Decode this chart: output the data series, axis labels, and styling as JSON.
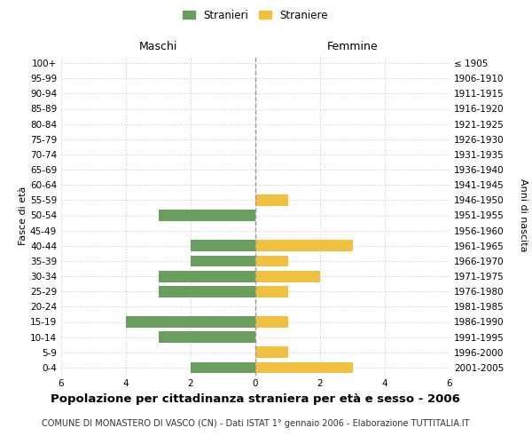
{
  "age_groups": [
    "0-4",
    "5-9",
    "10-14",
    "15-19",
    "20-24",
    "25-29",
    "30-34",
    "35-39",
    "40-44",
    "45-49",
    "50-54",
    "55-59",
    "60-64",
    "65-69",
    "70-74",
    "75-79",
    "80-84",
    "85-89",
    "90-94",
    "95-99",
    "100+"
  ],
  "birth_years": [
    "2001-2005",
    "1996-2000",
    "1991-1995",
    "1986-1990",
    "1981-1985",
    "1976-1980",
    "1971-1975",
    "1966-1970",
    "1961-1965",
    "1956-1960",
    "1951-1955",
    "1946-1950",
    "1941-1945",
    "1936-1940",
    "1931-1935",
    "1926-1930",
    "1921-1925",
    "1916-1920",
    "1911-1915",
    "1906-1910",
    "≤ 1905"
  ],
  "males": [
    2,
    0,
    3,
    4,
    0,
    3,
    3,
    2,
    2,
    0,
    3,
    0,
    0,
    0,
    0,
    0,
    0,
    0,
    0,
    0,
    0
  ],
  "females": [
    3,
    1,
    0,
    1,
    0,
    1,
    2,
    1,
    3,
    0,
    0,
    1,
    0,
    0,
    0,
    0,
    0,
    0,
    0,
    0,
    0
  ],
  "male_color": "#6a9e5f",
  "female_color": "#f0c040",
  "bar_height": 0.75,
  "xlim": 6,
  "title": "Popolazione per cittadinanza straniera per età e sesso - 2006",
  "subtitle": "COMUNE DI MONASTERO DI VASCO (CN) - Dati ISTAT 1° gennaio 2006 - Elaborazione TUTTITALIA.IT",
  "xlabel_left": "Maschi",
  "xlabel_right": "Femmine",
  "ylabel_left": "Fasce di età",
  "ylabel_right": "Anni di nascita",
  "legend_male": "Stranieri",
  "legend_female": "Straniere",
  "bg_color": "#ffffff",
  "grid_color": "#cccccc",
  "tick_fontsize": 7.5,
  "header_fontsize": 9,
  "title_fontsize": 9.5,
  "subtitle_fontsize": 7
}
